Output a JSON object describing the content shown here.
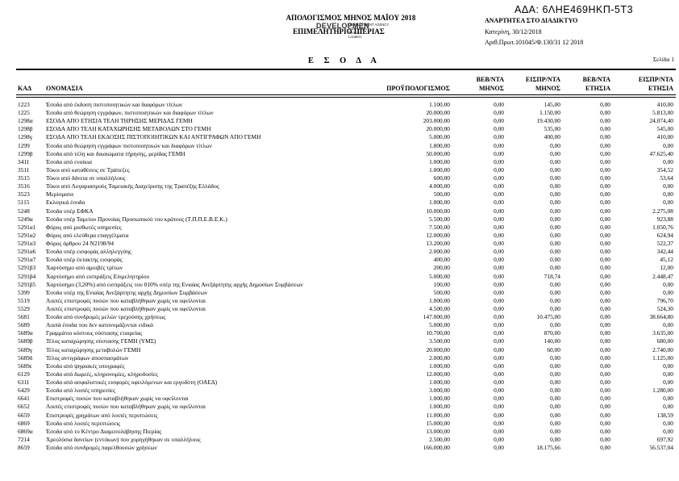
{
  "header": {
    "ada": "ΑΔΑ: 6ΛΗΕ469ΗΚΠ-5Τ3",
    "anartitea": "ΑΝΑΡΤΗΤΕΑ ΣΤΟ ΔΙΑΔΙΚΤΥΟ",
    "place_date": "Κατερίνη, 30/12/2018",
    "protocol": "Αριθ.Πρωτ.101045/Φ.130/31 12 2018",
    "title_line1": "ΑΠΟΛΟΓΙΣΜΟΣ ΜΗΝΟΣ ΜΑΪΟΥ 2018",
    "title_line2": "ΕΠΙΜΕΛΗΤΗΡΙΟ ΠΙΕΡΙΑΣ",
    "stamp": {
      "big_text": "DEVELOPMEN",
      "lines": [
        "DEVELOPMENT AGENCY",
        "2018.12.31",
        "Reason:",
        "Location:"
      ]
    },
    "section_title": "Ε Σ Ο Δ Α",
    "page_label": "Σελίδα 1"
  },
  "table": {
    "headers": {
      "code": "ΚΑΔ",
      "name": "ΟΝΟΜΑΣΙΑ",
      "c1_l2": "ΠΡΟΫΠΟΛΟΓΙΣΜΟΣ",
      "c2_l1": "ΒΕΒ/ΝΤΑ",
      "c2_l2": "ΜΗΝΟΣ",
      "c3_l1": "ΕΙΣΠΡ/ΝΤΑ",
      "c3_l2": "ΜΗΝΟΣ",
      "c4_l1": "ΒΕΒ/ΝΤΑ",
      "c4_l2": "ΕΤΗΣΙΑ",
      "c5_l1": "ΕΙΣΠΡ/ΝΤΑ",
      "c5_l2": "ΕΤΗΣΙΑ"
    },
    "rows": [
      {
        "code": "1223",
        "name": "Έσοδα από έκδοση πιστοποιητικών και διαφόρων τίτλων",
        "budget": "1.100,00",
        "veb_month": "0,00",
        "eisp_month": "145,00",
        "veb_year": "0,00",
        "eisp_year": "410,00"
      },
      {
        "code": "1225",
        "name": "Έσοδα από θεώρηση εγγράφων, πιστοποιητικών και διαφόρων τίτλων",
        "budget": "20.000,00",
        "veb_month": "0,00",
        "eisp_month": "1.150,00",
        "veb_year": "0,00",
        "eisp_year": "5.813,00"
      },
      {
        "code": "1298α",
        "name": "ΕΣΟΔΑ ΑΠΟ ΕΤΗΣΙΑ ΤΕΛΗ ΤΗΡΗΣΗΣ ΜΕΡΙΔΑΣ ΓΕΜΗ",
        "budget": "203.000,00",
        "veb_month": "0,00",
        "eisp_month": "19.430,00",
        "veb_year": "0,00",
        "eisp_year": "24.074,40"
      },
      {
        "code": "1298β",
        "name": "ΕΣΟΔΑ ΑΠΟ ΤΕΛΗ ΚΑΤΑΧΩΡΗΣΗΣ ΜΕΤΑΒΟΛΩΝ ΣΤΟ ΓΕΜΗ",
        "budget": "20.000,00",
        "veb_month": "0,00",
        "eisp_month": "535,00",
        "veb_year": "0,00",
        "eisp_year": "545,00"
      },
      {
        "code": "1298γ",
        "name": "ΕΣΟΔΑ ΑΠΟ ΤΕΛΗ ΕΚΔΟΣΗΣ ΠΙΣΤΟΠΟΙΗΤΙΚΩΝ ΚΑΙ ΑΝΤΙΓΡΑΦΩΝ ΑΠΟ ΓΕΜΗ",
        "budget": "5.000,00",
        "veb_month": "0,00",
        "eisp_month": "400,00",
        "veb_year": "0,00",
        "eisp_year": "410,00"
      },
      {
        "code": "1299",
        "name": "Έσοδα από θεώρηση εγγράφων πιστοποιητικών και διαφόρων τίτλων",
        "budget": "1.800,00",
        "veb_month": "0,00",
        "eisp_month": "0,00",
        "veb_year": "0,00",
        "eisp_year": "0,00"
      },
      {
        "code": "1299β",
        "name": "Έσοδα από τέλη και δικαιώματα τήρησης, μερίδας ΓΕΜΗ",
        "budget": "50.000,00",
        "veb_month": "0,00",
        "eisp_month": "0,00",
        "veb_year": "0,00",
        "eisp_year": "47.625,40"
      },
      {
        "code": "3411",
        "name": "Έσοδα από ενοίκια",
        "budget": "1.000,00",
        "veb_month": "0,00",
        "eisp_month": "0,00",
        "veb_year": "0,00",
        "eisp_year": "0,00"
      },
      {
        "code": "3511",
        "name": "Τόκοι από καταθέσεις σε Τράπεζες",
        "budget": "1.000,00",
        "veb_month": "0,00",
        "eisp_month": "0,00",
        "veb_year": "0,00",
        "eisp_year": "354,52"
      },
      {
        "code": "3515",
        "name": "Τόκοι από δάνεια σε υπαλλήλους",
        "budget": "600,00",
        "veb_month": "0,00",
        "eisp_month": "0,00",
        "veb_year": "0,00",
        "eisp_year": "53,64"
      },
      {
        "code": "3516",
        "name": "Τόκοι από Λογαριασμούς Ταμειακής Διαχείρισης της Τραπέζης Ελλάδος",
        "budget": "4.000,00",
        "veb_month": "0,00",
        "eisp_month": "0,00",
        "veb_year": "0,00",
        "eisp_year": "0,00"
      },
      {
        "code": "3523",
        "name": "Μερίσματα",
        "budget": "500,00",
        "veb_month": "0,00",
        "eisp_month": "0,00",
        "veb_year": "0,00",
        "eisp_year": "0,00"
      },
      {
        "code": "5115",
        "name": "Εκλογικά έσοδα",
        "budget": "1.000,00",
        "veb_month": "0,00",
        "eisp_month": "0,00",
        "veb_year": "0,00",
        "eisp_year": "0,00"
      },
      {
        "code": "5248",
        "name": "Έσοδα υπέρ ΕΦΚΑ",
        "budget": "10.000,00",
        "veb_month": "0,00",
        "eisp_month": "0,00",
        "veb_year": "0,00",
        "eisp_year": "2.275,08"
      },
      {
        "code": "5249α",
        "name": "Έσοδα υπέρ Ταμείου Προνοίας Προσωπικού του κράτους (Τ.Π.Π.Ε.Β.Ε.Κ.)",
        "budget": "5.500,00",
        "veb_month": "0,00",
        "eisp_month": "0,00",
        "veb_year": "0,00",
        "eisp_year": "923,88"
      },
      {
        "code": "5291α1",
        "name": "Φόρος από μισθωτές υπηρεσίες",
        "budget": "7.500,00",
        "veb_month": "0,00",
        "eisp_month": "0,00",
        "veb_year": "0,00",
        "eisp_year": "1.050,76"
      },
      {
        "code": "5291α2",
        "name": "Φόρος από ελεύθερα επαγγέλματα",
        "budget": "12.000,00",
        "veb_month": "0,00",
        "eisp_month": "0,00",
        "veb_year": "0,00",
        "eisp_year": "624,94"
      },
      {
        "code": "5291α3",
        "name": "Φόρος άρθρου 24 Ν2198/94",
        "budget": "13.200,00",
        "veb_month": "0,00",
        "eisp_month": "0,00",
        "veb_year": "0,00",
        "eisp_year": "522,37"
      },
      {
        "code": "5291α6",
        "name": "Έσοδα υπέρ εισφοράς αλληλεγγύης",
        "budget": "2.000,00",
        "veb_month": "0,00",
        "eisp_month": "0,00",
        "veb_year": "0,00",
        "eisp_year": "342,44"
      },
      {
        "code": "5291α7",
        "name": "Έσοδα υπέρ έκτακτης εισφοράς",
        "budget": "400,00",
        "veb_month": "0,00",
        "eisp_month": "0,00",
        "veb_year": "0,00",
        "eisp_year": "45,12"
      },
      {
        "code": "5291β3",
        "name": "Χαρτόσημο από αμοιβές τρίτων",
        "budget": "200,00",
        "veb_month": "0,00",
        "eisp_month": "0,00",
        "veb_year": "0,00",
        "eisp_year": "12,00"
      },
      {
        "code": "5291β4",
        "name": "Χαρτόσημο από εισπράξεις Επιμελητηρίου",
        "budget": "5.000,00",
        "veb_month": "0,00",
        "eisp_month": "718,74",
        "veb_year": "0,00",
        "eisp_year": "2.448,47"
      },
      {
        "code": "5291β5",
        "name": "Χαρτόσημο (3,20%) από εισπράξεις του 010% υπέρ της Ενιαίας Ανεξάρτητης αρχής Δημοσίων Συμβάσεων",
        "budget": "100,00",
        "veb_month": "0,00",
        "eisp_month": "0,00",
        "veb_year": "0,00",
        "eisp_year": "0,00"
      },
      {
        "code": "5399",
        "name": "Έσοδα υπέρ της Ενιαίας Ανεξάρτητης αρχής Δημοσίων Συμβάσεων",
        "budget": "500,00",
        "veb_month": "0,00",
        "eisp_month": "0,00",
        "veb_year": "0,00",
        "eisp_year": "0,00"
      },
      {
        "code": "5519",
        "name": "Λοιπές επιστροφές ποσών που καταβλήθηκαν χωρίς να οφείλονται",
        "budget": "1.000,00",
        "veb_month": "0,00",
        "eisp_month": "0,00",
        "veb_year": "0,00",
        "eisp_year": "796,70"
      },
      {
        "code": "5529",
        "name": "Λοιπές επιστροφές ποσών που καταβλήθηκαν χωρίς να οφείλονται",
        "budget": "4.500,00",
        "veb_month": "0,00",
        "eisp_month": "0,00",
        "veb_year": "0,00",
        "eisp_year": "524,30"
      },
      {
        "code": "5681",
        "name": "Έσοδα από συνδρομές μελών τρεχούσης χρήσεως",
        "budget": "147.000,00",
        "veb_month": "0,00",
        "eisp_month": "10.475,00",
        "veb_year": "0,00",
        "eisp_year": "38.664,80"
      },
      {
        "code": "5689",
        "name": "Λοιπά έσοδα που δεν κατονομάζονται ειδικά",
        "budget": "5.000,00",
        "veb_month": "0,00",
        "eisp_month": "0,00",
        "veb_year": "0,00",
        "eisp_year": "0,00"
      },
      {
        "code": "5689α",
        "name": "Γραμμάτιο κόστους σύστασης εταιρείας",
        "budget": "10.700,00",
        "veb_month": "0,00",
        "eisp_month": "870,00",
        "veb_year": "0,00",
        "eisp_year": "3.635,00"
      },
      {
        "code": "5689β",
        "name": "Τέλος καταχώρησης σύστασης ΓΕΜΗ (ΥΜΣ)",
        "budget": "3.500,00",
        "veb_month": "0,00",
        "eisp_month": "140,00",
        "veb_year": "0,00",
        "eisp_year": "680,00"
      },
      {
        "code": "5689γ",
        "name": "Τέλος καταχώρησης μεταβολών ΓΕΜΗ",
        "budget": "20.000,00",
        "veb_month": "0,00",
        "eisp_month": "60,00",
        "veb_year": "0,00",
        "eisp_year": "2.740,00"
      },
      {
        "code": "5689δ",
        "name": "Τέλος αντιγράφων αποσπασμάτων",
        "budget": "2.000,00",
        "veb_month": "0,00",
        "eisp_month": "0,00",
        "veb_year": "0,00",
        "eisp_year": "1.125,00"
      },
      {
        "code": "5689ε",
        "name": "Έσοδα από ψηφιακές υπογραφές",
        "budget": "1.000,00",
        "veb_month": "0,00",
        "eisp_month": "0,00",
        "veb_year": "0,00",
        "eisp_year": "0,00"
      },
      {
        "code": "6129",
        "name": "Έσοδα από δωρεές, κληρονομίες, κληροδοσίες",
        "budget": "12.000,00",
        "veb_month": "0,00",
        "eisp_month": "0,00",
        "veb_year": "0,00",
        "eisp_year": "0,00"
      },
      {
        "code": "6311",
        "name": "Έσοδα από ασφαλιστικές εισφορές οφειλόμενων και εργοδότη (ΟΑΕΔ)",
        "budget": "1.000,00",
        "veb_month": "0,00",
        "eisp_month": "0,00",
        "veb_year": "0,00",
        "eisp_year": "0,00"
      },
      {
        "code": "6429",
        "name": "Έσοδα από λοιπές υπηρεσίες",
        "budget": "3.000,00",
        "veb_month": "0,00",
        "eisp_month": "0,00",
        "veb_year": "0,00",
        "eisp_year": "1.280,00"
      },
      {
        "code": "6641",
        "name": "Επιστροφές ποσών που καταβλήθηκαν χωρίς να οφείλονται",
        "budget": "1.000,00",
        "veb_month": "0,00",
        "eisp_month": "0,00",
        "veb_year": "0,00",
        "eisp_year": "0,00"
      },
      {
        "code": "6652",
        "name": "Λοιπές επιστροφές ποσών που καταβλήθηκαν χωρίς να οφείλονται",
        "budget": "1.000,00",
        "veb_month": "0,00",
        "eisp_month": "0,00",
        "veb_year": "0,00",
        "eisp_year": "0,00"
      },
      {
        "code": "6659",
        "name": "Επιστροφές χρημάτων από λοιπές περιπτώσεις",
        "budget": "11.000,00",
        "veb_month": "0,00",
        "eisp_month": "0,00",
        "veb_year": "0,00",
        "eisp_year": "138,59"
      },
      {
        "code": "6869",
        "name": "Έσοδα από λοιπές περιπτώσεις",
        "budget": "15.000,00",
        "veb_month": "0,00",
        "eisp_month": "0,00",
        "veb_year": "0,00",
        "eisp_year": "0,00"
      },
      {
        "code": "6869α",
        "name": "Έσοδα από το Κέντρο Διαμεσολάβησης Πιερίας",
        "budget": "13.000,00",
        "veb_month": "0,00",
        "eisp_month": "0,00",
        "veb_year": "0,00",
        "eisp_year": "0,00"
      },
      {
        "code": "7214",
        "name": "Χρεολύσια δανείων (εντόκων) που χορηγήθηκαν σε υπαλλήλους",
        "budget": "2.500,00",
        "veb_month": "0,00",
        "eisp_month": "0,00",
        "veb_year": "0,00",
        "eisp_year": "697,92"
      },
      {
        "code": "8659",
        "name": "Έσοδα από συνδρομές παρελθουσών χρήσεων",
        "budget": "166.000,00",
        "veb_month": "0,00",
        "eisp_month": "18.175,66",
        "veb_year": "0,00",
        "eisp_year": "56.537,04"
      }
    ]
  }
}
